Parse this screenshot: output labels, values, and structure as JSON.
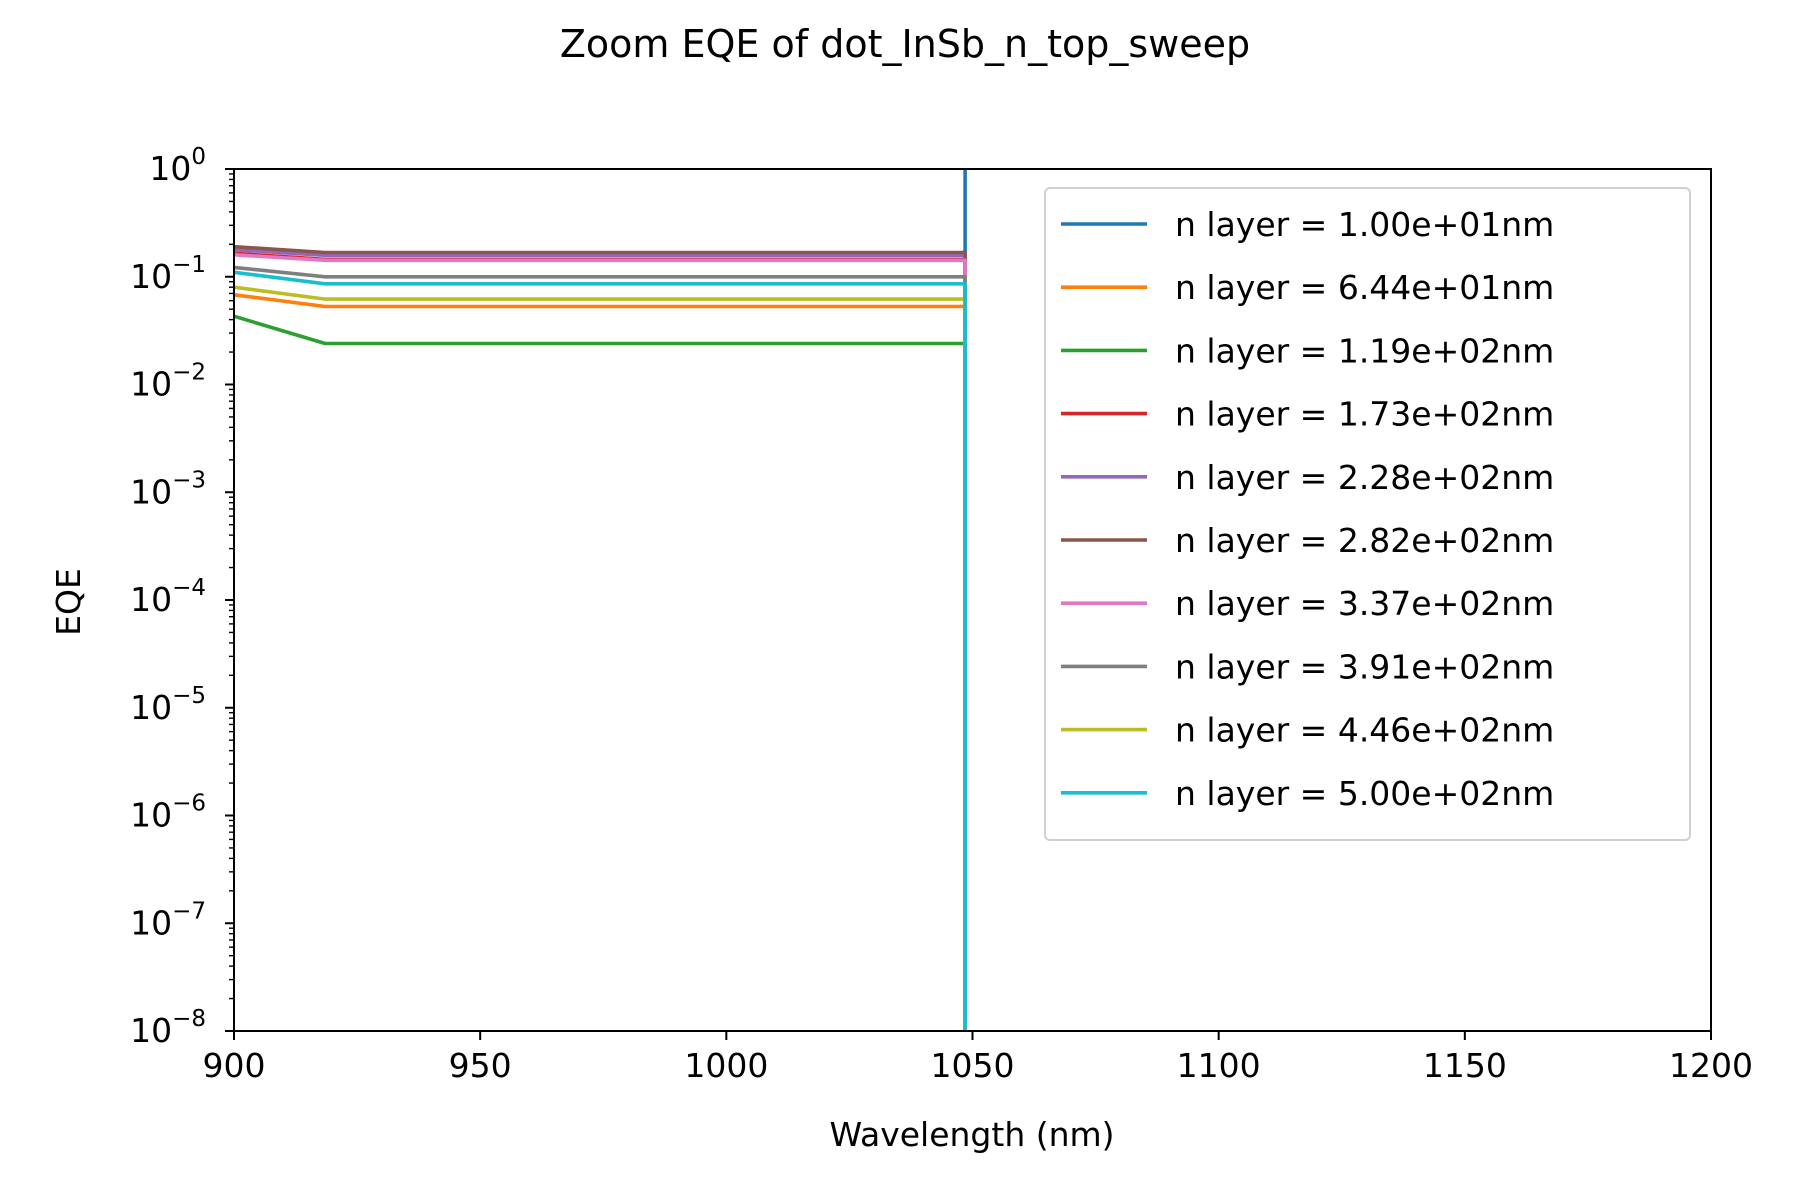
{
  "chart_data": {
    "type": "line",
    "title": "Zoom EQE of dot_InSb_n_top_sweep",
    "xlabel": "Wavelength (nm)",
    "ylabel": "EQE",
    "xlim": [
      900,
      1200
    ],
    "ylim": [
      1e-08,
      1
    ],
    "yscale": "log",
    "grid": false,
    "legend_position": "top-right",
    "x_ticks": [
      "900",
      "950",
      "1000",
      "1050",
      "1100",
      "1150",
      "1200"
    ],
    "y_ticks": [
      {
        "base": "10",
        "exp": "0"
      },
      {
        "base": "10",
        "exp": "−1"
      },
      {
        "base": "10",
        "exp": "−2"
      },
      {
        "base": "10",
        "exp": "−3"
      },
      {
        "base": "10",
        "exp": "−4"
      },
      {
        "base": "10",
        "exp": "−5"
      },
      {
        "base": "10",
        "exp": "−6"
      },
      {
        "base": "10",
        "exp": "−7"
      },
      {
        "base": "10",
        "exp": "−8"
      }
    ],
    "series": [
      {
        "name": "n layer = 1.00e+01nm",
        "color": "#1f77b4",
        "x": [
          1048.5,
          1048.5
        ],
        "y": [
          1e-08,
          1
        ]
      },
      {
        "name": "n layer = 6.44e+01nm",
        "color": "#ff7f0e",
        "x": [
          900,
          918.5,
          1048.5,
          1048.5
        ],
        "y": [
          0.068,
          0.053,
          0.053,
          1e-08
        ]
      },
      {
        "name": "n layer = 1.19e+02nm",
        "color": "#2ca02c",
        "x": [
          900,
          918.5,
          1048.5,
          1048.5
        ],
        "y": [
          0.043,
          0.024,
          0.024,
          1e-08
        ]
      },
      {
        "name": "n layer = 1.73e+02nm",
        "color": "#d62728",
        "x": [
          900,
          918.5,
          1048.5,
          1048.5
        ],
        "y": [
          0.165,
          0.145,
          0.145,
          1e-08
        ]
      },
      {
        "name": "n layer = 2.28e+02nm",
        "color": "#9467bd",
        "x": [
          900,
          918.5,
          1048.5,
          1048.5
        ],
        "y": [
          0.178,
          0.158,
          0.158,
          1e-08
        ]
      },
      {
        "name": "n layer = 2.82e+02nm",
        "color": "#8c564b",
        "x": [
          900,
          918.5,
          1048.5,
          1048.5
        ],
        "y": [
          0.19,
          0.168,
          0.168,
          1e-08
        ]
      },
      {
        "name": "n layer = 3.37e+02nm",
        "color": "#e377c2",
        "x": [
          900,
          918.5,
          1048.5,
          1048.5
        ],
        "y": [
          0.16,
          0.142,
          0.142,
          1e-08
        ]
      },
      {
        "name": "n layer = 3.91e+02nm",
        "color": "#7f7f7f",
        "x": [
          900,
          918.5,
          1048.5,
          1048.5
        ],
        "y": [
          0.122,
          0.1,
          0.1,
          1e-08
        ]
      },
      {
        "name": "n layer = 4.46e+02nm",
        "color": "#bcbd22",
        "x": [
          900,
          918.5,
          1048.5,
          1048.5
        ],
        "y": [
          0.08,
          0.062,
          0.062,
          1e-08
        ]
      },
      {
        "name": "n layer = 5.00e+02nm",
        "color": "#17becf",
        "x": [
          900,
          918.5,
          1048.5,
          1048.5
        ],
        "y": [
          0.11,
          0.086,
          0.086,
          1e-08
        ]
      }
    ]
  }
}
